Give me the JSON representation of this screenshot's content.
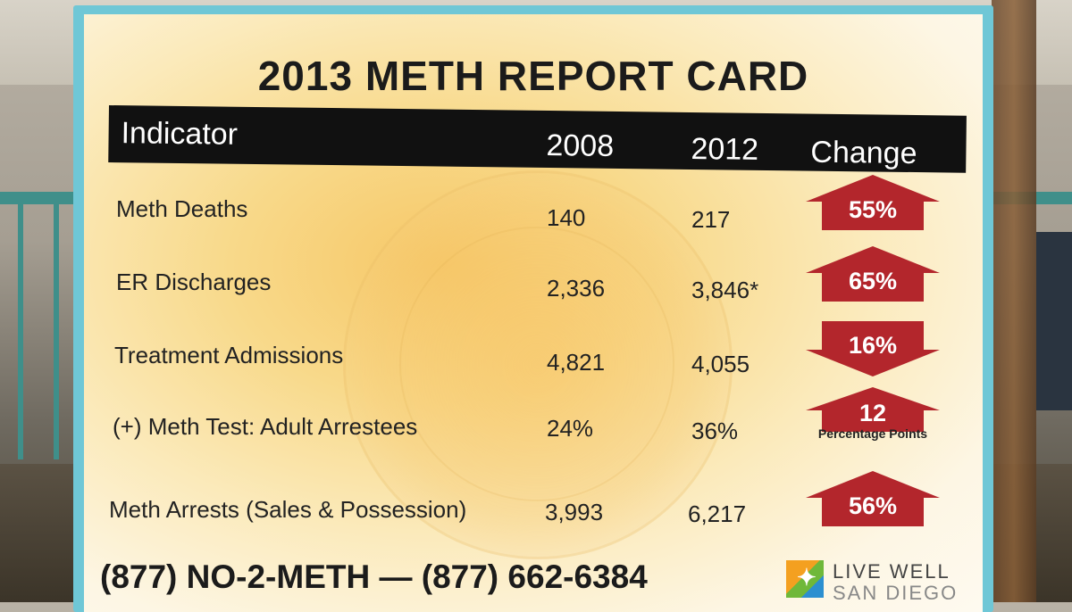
{
  "title": "2013 METH REPORT CARD",
  "header": {
    "indicator": "Indicator",
    "year1": "2008",
    "year2": "2012",
    "change": "Change"
  },
  "rows": [
    {
      "indicator": "Meth Deaths",
      "v2008": "140",
      "v2012": "217",
      "change": "55%",
      "direction": "up"
    },
    {
      "indicator": "ER Discharges",
      "v2008": "2,336",
      "v2012": "3,846*",
      "change": "65%",
      "direction": "up"
    },
    {
      "indicator": "Treatment Admissions",
      "v2008": "4,821",
      "v2012": "4,055",
      "change": "16%",
      "direction": "down"
    },
    {
      "indicator": "(+) Meth Test: Adult Arrestees",
      "v2008": "24%",
      "v2012": "36%",
      "change": "12",
      "change_note": "Percentage Points",
      "direction": "up"
    },
    {
      "indicator": "Meth Arrests (Sales & Possession)",
      "v2008": "3,993",
      "v2012": "6,217",
      "change": "56%",
      "direction": "up"
    }
  ],
  "footer": {
    "phone": "(877) NO-2-METH — (877) 662-6384",
    "logo_line1": "LIVE WELL",
    "logo_line2": "SAN DIEGO"
  },
  "colors": {
    "arrow": "#b3262c",
    "board_border": "#6fc7d6",
    "header_bar": "#111111"
  }
}
